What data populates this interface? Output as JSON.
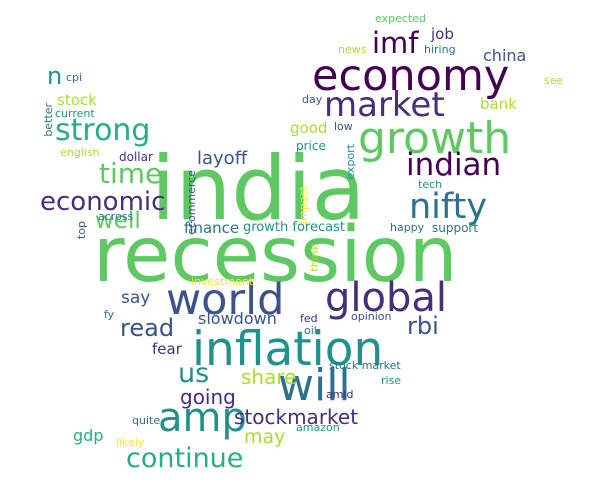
{
  "palette": [
    "#440154",
    "#472d7b",
    "#3b528b",
    "#2c728e",
    "#21918c",
    "#28ae80",
    "#5ec962",
    "#addc30",
    "#fde725"
  ],
  "words": [
    {
      "text": "recession",
      "color": "#5ec962"
    },
    {
      "text": "india",
      "color": "#5ec962"
    },
    {
      "text": "inflation",
      "color": "#21918c"
    },
    {
      "text": "economy",
      "color": "#440154"
    },
    {
      "text": "growth",
      "color": "#5ec962"
    },
    {
      "text": "world",
      "color": "#3b528b"
    },
    {
      "text": "global",
      "color": "#472d7b"
    },
    {
      "text": "market",
      "color": "#472d7b"
    },
    {
      "text": "will",
      "color": "#2c728e"
    },
    {
      "text": "amp",
      "color": "#21918c"
    },
    {
      "text": "nifty",
      "color": "#2c728e"
    },
    {
      "text": "indian",
      "color": "#440154"
    },
    {
      "text": "strong",
      "color": "#28ae80"
    },
    {
      "text": "imf",
      "color": "#440154"
    },
    {
      "text": "time",
      "color": "#5ec962"
    },
    {
      "text": "economic",
      "color": "#472d7b"
    },
    {
      "text": "continue",
      "color": "#28ae80"
    },
    {
      "text": "us",
      "color": "#21918c"
    },
    {
      "text": "read",
      "color": "#3b528b"
    },
    {
      "text": "well",
      "color": "#5ec962"
    },
    {
      "text": "rbi",
      "color": "#3b528b"
    },
    {
      "text": "share",
      "color": "#addc30"
    },
    {
      "text": "going",
      "color": "#472d7b"
    },
    {
      "text": "stockmarket",
      "color": "#472d7b"
    },
    {
      "text": "layoff",
      "color": "#3b528b"
    },
    {
      "text": "n",
      "color": "#21918c"
    },
    {
      "text": "say",
      "color": "#3b528b"
    },
    {
      "text": "slowdown",
      "color": "#3b528b"
    },
    {
      "text": "china",
      "color": "#3b528b"
    },
    {
      "text": "may",
      "color": "#addc30"
    },
    {
      "text": "gdp",
      "color": "#28ae80"
    },
    {
      "text": "stock",
      "color": "#addc30"
    },
    {
      "text": "bank",
      "color": "#addc30"
    },
    {
      "text": "finance",
      "color": "#2c728e"
    },
    {
      "text": "fear",
      "color": "#472d7b"
    },
    {
      "text": "good",
      "color": "#addc30"
    },
    {
      "text": "job",
      "color": "#472d7b"
    },
    {
      "text": "growth forecast",
      "color": "#21918c"
    },
    {
      "text": "expected",
      "color": "#5ec962"
    },
    {
      "text": "news",
      "color": "#addc30"
    },
    {
      "text": "hiring",
      "color": "#2c728e"
    },
    {
      "text": "see",
      "color": "#addc30"
    },
    {
      "text": "cpi",
      "color": "#2c728e"
    },
    {
      "text": "current",
      "color": "#21918c"
    },
    {
      "text": "better",
      "color": "#2c728e"
    },
    {
      "text": "english",
      "color": "#addc30"
    },
    {
      "text": "dollar",
      "color": "#472d7b"
    },
    {
      "text": "day",
      "color": "#3b528b"
    },
    {
      "text": "low",
      "color": "#3b528b"
    },
    {
      "text": "price",
      "color": "#21918c"
    },
    {
      "text": "export",
      "color": "#21918c"
    },
    {
      "text": "ecommerce",
      "color": "#3b528b"
    },
    {
      "text": "tech",
      "color": "#21918c"
    },
    {
      "text": "impact",
      "color": "#fde725"
    },
    {
      "text": "across",
      "color": "#2c728e"
    },
    {
      "text": "top",
      "color": "#3b528b"
    },
    {
      "text": "happy",
      "color": "#2c728e"
    },
    {
      "text": "support",
      "color": "#2c728e"
    },
    {
      "text": "think",
      "color": "#addc30"
    },
    {
      "text": "investment",
      "color": "#fde725"
    },
    {
      "text": "fy",
      "color": "#2c728e"
    },
    {
      "text": "fed",
      "color": "#472d7b"
    },
    {
      "text": "opinion",
      "color": "#3b528b"
    },
    {
      "text": "oil",
      "color": "#2c728e"
    },
    {
      "text": "stock market",
      "color": "#2c728e"
    },
    {
      "text": "amid",
      "color": "#472d7b"
    },
    {
      "text": "rise",
      "color": "#21918c"
    },
    {
      "text": "quite",
      "color": "#2c728e"
    },
    {
      "text": "likely",
      "color": "#fde725"
    },
    {
      "text": "amazon",
      "color": "#21918c"
    }
  ]
}
